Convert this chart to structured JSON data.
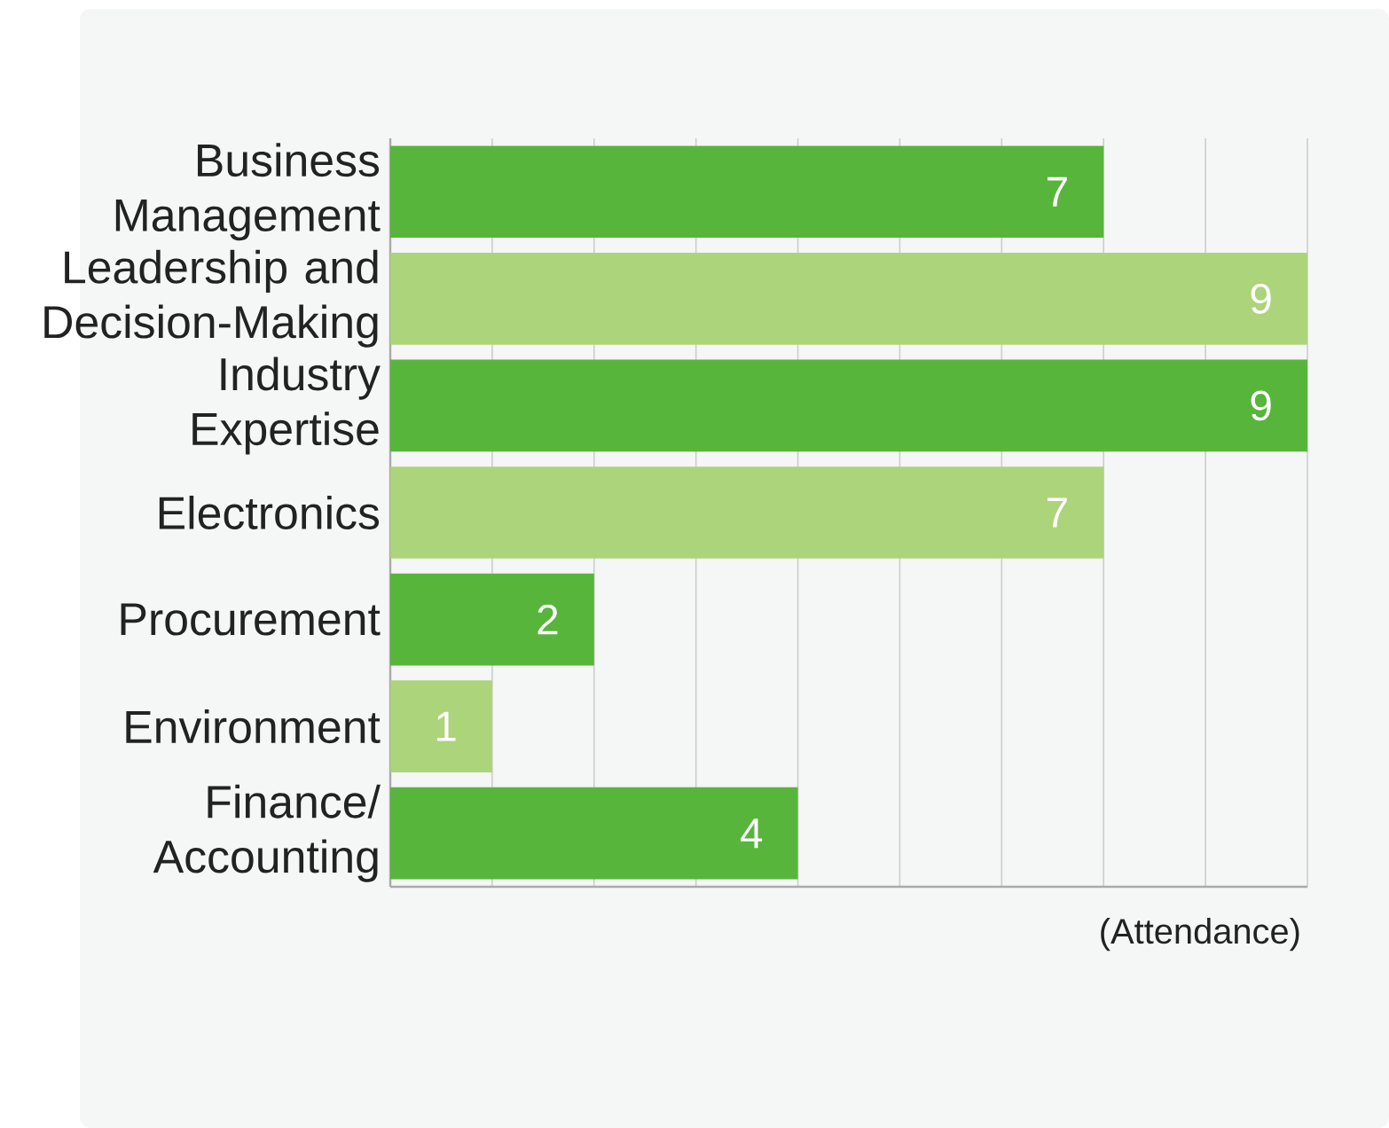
{
  "chart_data": {
    "type": "bar",
    "orientation": "horizontal",
    "categories": [
      "Business Management",
      "Leadership and Decision-Making",
      "Industry Expertise",
      "Electronics",
      "Procurement",
      "Environment",
      "Finance/ Accounting"
    ],
    "values": [
      7,
      9,
      9,
      7,
      2,
      1,
      4
    ],
    "colors": [
      "#57b53c",
      "#acd47a",
      "#57b53c",
      "#acd47a",
      "#57b53c",
      "#acd47a",
      "#57b53c"
    ],
    "xlabel": "(Attendance)",
    "xlim": [
      0,
      9
    ],
    "xticks": [
      {
        "value": 0,
        "label": null
      },
      {
        "value": 1,
        "label": null
      },
      {
        "value": 2,
        "label": null
      },
      {
        "value": 3,
        "label": null
      },
      {
        "value": 4,
        "label": null
      },
      {
        "value": 5,
        "label": null
      },
      {
        "value": 6,
        "label": null
      },
      {
        "value": 7,
        "label": null
      },
      {
        "value": 8,
        "label": null
      },
      {
        "value": 9,
        "label": null
      }
    ],
    "grid": "x",
    "data_labels": true,
    "tick_labels": "y"
  }
}
